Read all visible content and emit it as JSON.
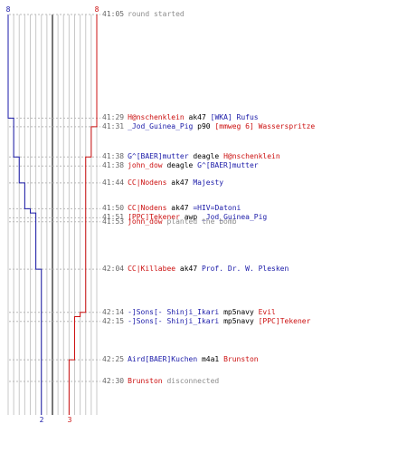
{
  "scale": {
    "top_labels": {
      "blue": "8",
      "red": "8"
    },
    "bottom_labels": {
      "blue": "2",
      "red": "3"
    }
  },
  "teams": {
    "blue_color": "#1a1aa8",
    "red_color": "#cc1111"
  },
  "events": [
    {
      "time": "41:05",
      "parts": [
        {
          "text": "round started",
          "style": "gray"
        }
      ]
    },
    {
      "time": "41:29",
      "parts": [
        {
          "text": "H@nschenklein",
          "style": "red"
        },
        {
          "text": " ak47 ",
          "style": ""
        },
        {
          "text": "[WKA] Rufus",
          "style": "blue"
        }
      ]
    },
    {
      "time": "41:31",
      "parts": [
        {
          "text": "_Jod_Guinea_Pig",
          "style": "blue"
        },
        {
          "text": " p90 ",
          "style": ""
        },
        {
          "text": "[mmweg 6] Wasserspritze",
          "style": "red"
        }
      ]
    },
    {
      "time": "41:38",
      "parts": [
        {
          "text": "G^[BAER]mutter",
          "style": "blue"
        },
        {
          "text": " deagle ",
          "style": ""
        },
        {
          "text": "H@nschenklein",
          "style": "red"
        }
      ]
    },
    {
      "time": "41:38",
      "parts": [
        {
          "text": "john_dow",
          "style": "red"
        },
        {
          "text": " deagle ",
          "style": ""
        },
        {
          "text": "G^[BAER]mutter",
          "style": "blue"
        }
      ]
    },
    {
      "time": "41:44",
      "parts": [
        {
          "text": "CC|Nodens",
          "style": "red"
        },
        {
          "text": " ak47 ",
          "style": ""
        },
        {
          "text": "Majesty",
          "style": "blue"
        }
      ]
    },
    {
      "time": "41:50",
      "parts": [
        {
          "text": "CC|Nodens",
          "style": "red"
        },
        {
          "text": " ak47 ",
          "style": ""
        },
        {
          "text": "=HIV=Datoni",
          "style": "blue"
        }
      ]
    },
    {
      "time": "41:51",
      "parts": [
        {
          "text": "[PPC]Tekener",
          "style": "red"
        },
        {
          "text": " awp ",
          "style": ""
        },
        {
          "text": "_Jod_Guinea_Pig",
          "style": "blue"
        }
      ]
    },
    {
      "time": "41:53",
      "parts": [
        {
          "text": "john_dow",
          "style": "red"
        },
        {
          "text": " planted the bomb",
          "style": "gray"
        }
      ]
    },
    {
      "time": "42:04",
      "parts": [
        {
          "text": "CC|Killabee",
          "style": "red"
        },
        {
          "text": " ak47 ",
          "style": ""
        },
        {
          "text": "Prof. Dr. W. Plesken",
          "style": "blue"
        }
      ]
    },
    {
      "time": "42:14",
      "parts": [
        {
          "text": "-]Sons[- Shinji_Ikari",
          "style": "blue"
        },
        {
          "text": " mp5navy ",
          "style": ""
        },
        {
          "text": "Evil",
          "style": "red"
        }
      ]
    },
    {
      "time": "42:15",
      "parts": [
        {
          "text": "-]Sons[- Shinji_Ikari",
          "style": "blue"
        },
        {
          "text": " mp5navy ",
          "style": ""
        },
        {
          "text": "[PPC]Tekener",
          "style": "red"
        }
      ]
    },
    {
      "time": "42:25",
      "parts": [
        {
          "text": "Aird[BAER]Kuchen",
          "style": "blue"
        },
        {
          "text": " m4a1 ",
          "style": ""
        },
        {
          "text": "Brunston",
          "style": "red"
        }
      ]
    },
    {
      "time": "42:30",
      "parts": [
        {
          "text": "Brunston",
          "style": "red"
        },
        {
          "text": " disconnected",
          "style": "gray"
        }
      ]
    }
  ],
  "chart_data": {
    "type": "line",
    "x": [
      "41:05",
      "41:29",
      "41:31",
      "41:38",
      "41:38",
      "41:44",
      "41:50",
      "41:51",
      "41:53",
      "42:04",
      "42:14",
      "42:15",
      "42:25",
      "42:30"
    ],
    "series": [
      {
        "values": [
          8,
          7,
          7,
          6,
          6,
          5,
          4,
          3,
          3,
          2,
          2,
          2,
          2,
          2
        ]
      },
      {
        "values": [
          8,
          8,
          7,
          7,
          6,
          6,
          6,
          6,
          6,
          6,
          5,
          4,
          3,
          3
        ]
      }
    ],
    "ylim": [
      0,
      8
    ]
  }
}
